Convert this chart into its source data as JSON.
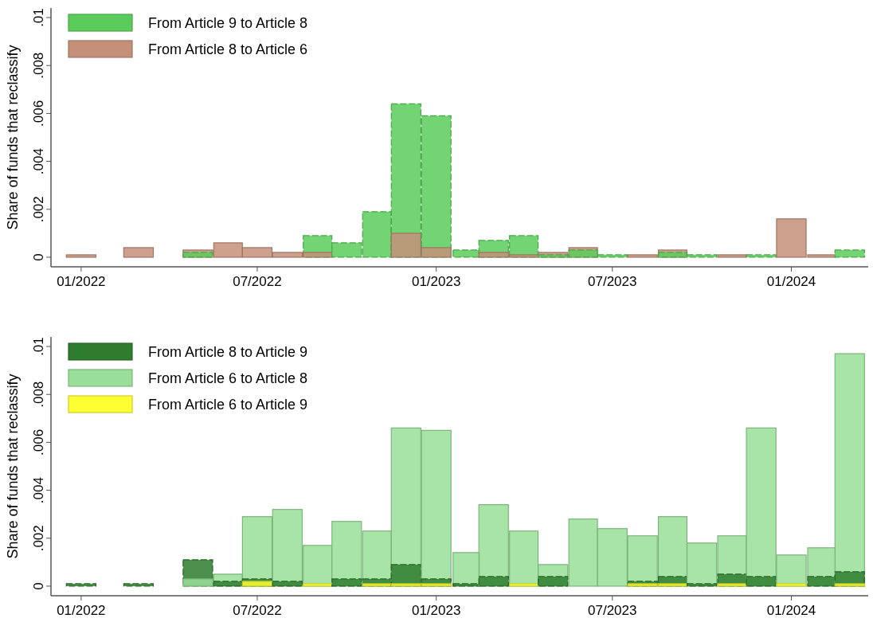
{
  "chart_data": [
    {
      "type": "bar",
      "ylabel": "Share of funds that reclassify",
      "x": [
        "2022-01",
        "2022-02",
        "2022-03",
        "2022-04",
        "2022-05",
        "2022-06",
        "2022-07",
        "2022-08",
        "2022-09",
        "2022-10",
        "2022-11",
        "2022-12",
        "2023-01",
        "2023-02",
        "2023-03",
        "2023-04",
        "2023-05",
        "2023-06",
        "2023-07",
        "2023-08",
        "2023-09",
        "2023-10",
        "2023-11",
        "2023-12",
        "2024-01",
        "2024-02",
        "2024-03"
      ],
      "series": [
        {
          "name": "From Article 9 to Article 8",
          "color": "#5bcc5b",
          "values": [
            0,
            0,
            0,
            0,
            0.0002,
            0,
            0,
            0,
            0.0009,
            0.0006,
            0.0019,
            0.0064,
            0.0059,
            0.0003,
            0.0007,
            0.0009,
            0.0001,
            0.0003,
            0.0001,
            0,
            0.0002,
            0.0001,
            0,
            0.0001,
            0,
            0,
            0.0003
          ]
        },
        {
          "name": "From Article 8 to Article 6",
          "color": "#c4907a",
          "values": [
            0.0001,
            0,
            0.0004,
            0,
            0.0003,
            0.0006,
            0.0004,
            0.0002,
            0.0002,
            0,
            0,
            0.001,
            0.0004,
            0,
            0.0002,
            0.0001,
            0.0002,
            0.0004,
            0,
            0.0001,
            0.0003,
            0,
            0.0001,
            0,
            0.0016,
            0.0001,
            0
          ]
        }
      ],
      "xlim": [
        "2021-12-01",
        "2024-03-20"
      ],
      "xticks": [
        {
          "value": "2022-01",
          "label": "01/2022"
        },
        {
          "value": "2022-07",
          "label": "07/2022"
        },
        {
          "value": "2023-01",
          "label": "01/2023"
        },
        {
          "value": "2023-07",
          "label": "07/2023"
        },
        {
          "value": "2024-01",
          "label": "01/2024"
        }
      ],
      "ylim": [
        -0.0004,
        0.0104
      ],
      "yticks": [
        0,
        {
          "value": 0.002,
          "label": ".002"
        },
        {
          "value": 0.004,
          "label": ".004"
        },
        {
          "value": 0.006,
          "label": ".006"
        },
        {
          "value": 0.008,
          "label": ".008"
        },
        {
          "value": 0.01,
          "label": ".01"
        }
      ],
      "legend": "top left",
      "grid": false
    },
    {
      "type": "bar",
      "ylabel": "Share of funds that reclassify",
      "x": [
        "2022-01",
        "2022-02",
        "2022-03",
        "2022-04",
        "2022-05",
        "2022-06",
        "2022-07",
        "2022-08",
        "2022-09",
        "2022-10",
        "2022-11",
        "2022-12",
        "2023-01",
        "2023-02",
        "2023-03",
        "2023-04",
        "2023-05",
        "2023-06",
        "2023-07",
        "2023-08",
        "2023-09",
        "2023-10",
        "2023-11",
        "2023-12",
        "2024-01",
        "2024-02",
        "2024-03"
      ],
      "series": [
        {
          "name": "From Article 8 to Article 9",
          "color": "#2e7d2e",
          "values": [
            0.0001,
            0,
            0.0001,
            0,
            0.0011,
            0.0002,
            0.0003,
            0.0002,
            0,
            0.0003,
            0.0003,
            0.0009,
            0.0003,
            0.0001,
            0.0004,
            0,
            0.0004,
            0,
            0,
            0.0002,
            0.0004,
            0.0001,
            0.0005,
            0.0004,
            0,
            0.0004,
            0.0006
          ]
        },
        {
          "name": "From Article 6 to Article 8",
          "color": "#99df99",
          "values": [
            0,
            0,
            0,
            0,
            0.0003,
            0.0005,
            0.0029,
            0.0032,
            0.0017,
            0.0027,
            0.0023,
            0.0066,
            0.0065,
            0.0014,
            0.0034,
            0.0023,
            0.0009,
            0.0028,
            0.0024,
            0.0021,
            0.0029,
            0.0018,
            0.0021,
            0.0066,
            0.0013,
            0.0016,
            0.0097
          ]
        },
        {
          "name": "From Article 6 to Article 9",
          "color": "#ffff33",
          "values": [
            0,
            0,
            0,
            0,
            0,
            0,
            0.0002,
            0,
            0.0001,
            0,
            0.0001,
            0.0001,
            0.0001,
            0,
            0,
            0.0001,
            0,
            0,
            0,
            0.0001,
            0.0001,
            0,
            0.0001,
            0,
            0.0001,
            0,
            0.0001
          ]
        }
      ],
      "xlim": [
        "2021-12-01",
        "2024-03-20"
      ],
      "xticks": [
        {
          "value": "2022-01",
          "label": "01/2022"
        },
        {
          "value": "2022-07",
          "label": "07/2022"
        },
        {
          "value": "2023-01",
          "label": "01/2023"
        },
        {
          "value": "2023-07",
          "label": "07/2023"
        },
        {
          "value": "2024-01",
          "label": "01/2024"
        }
      ],
      "ylim": [
        -0.0004,
        0.0104
      ],
      "yticks": [
        0,
        {
          "value": 0.002,
          "label": ".002"
        },
        {
          "value": 0.004,
          "label": ".004"
        },
        {
          "value": 0.006,
          "label": ".006"
        },
        {
          "value": 0.008,
          "label": ".008"
        },
        {
          "value": 0.01,
          "label": ".01"
        }
      ],
      "legend": "top left",
      "grid": false
    }
  ]
}
